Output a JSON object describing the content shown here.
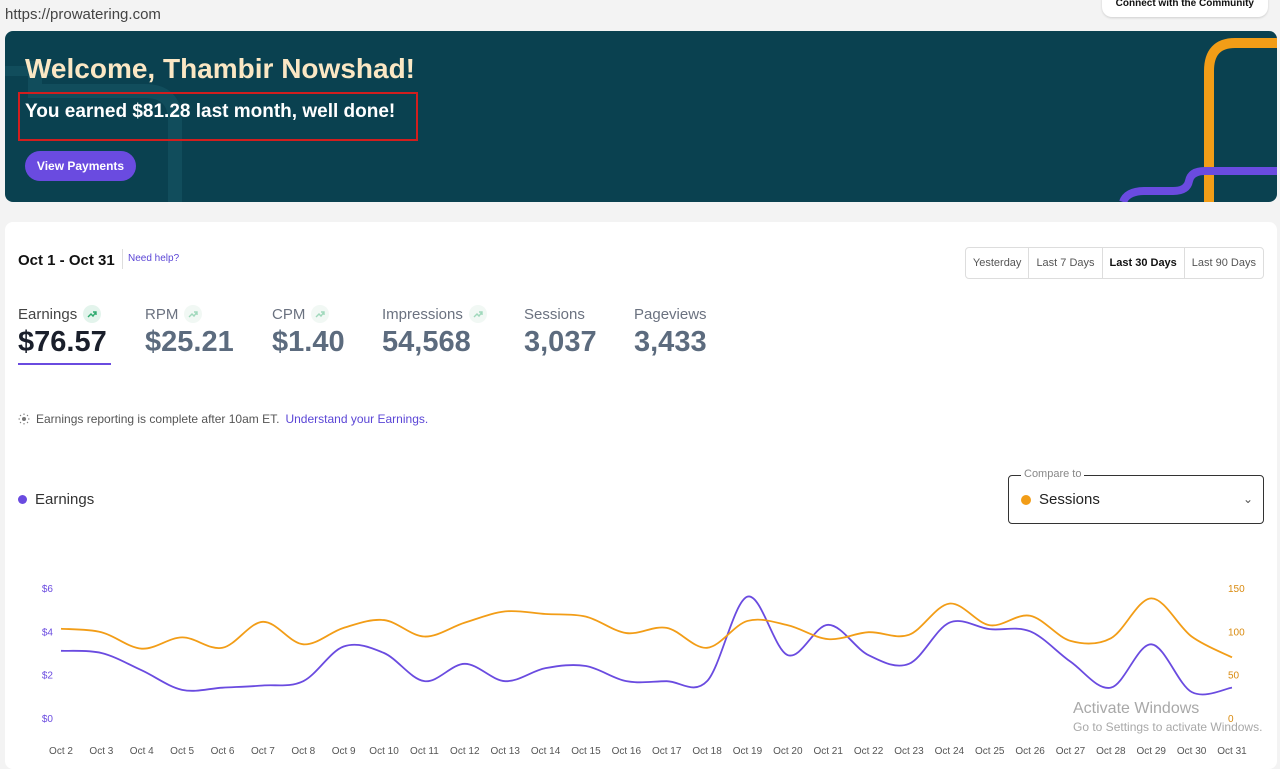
{
  "header": {
    "site_url": "https://prowatering.com",
    "community_button": "Connect with the Community"
  },
  "hero": {
    "title": "Welcome, Thambir Nowshad!",
    "subtitle": "You earned $81.28 last month, well done!",
    "button": "View Payments"
  },
  "dashboard": {
    "date_range": "Oct 1 - Oct 31",
    "help_link": "Need help?",
    "ranges": [
      "Yesterday",
      "Last 7 Days",
      "Last 30 Days",
      "Last 90 Days"
    ],
    "active_range": "Last 30 Days",
    "metrics": [
      {
        "label": "Earnings",
        "value": "$76.57",
        "active": true
      },
      {
        "label": "RPM",
        "value": "$25.21"
      },
      {
        "label": "CPM",
        "value": "$1.40"
      },
      {
        "label": "Impressions",
        "value": "54,568"
      },
      {
        "label": "Sessions",
        "value": "3,037"
      },
      {
        "label": "Pageviews",
        "value": "3,433"
      }
    ],
    "note_text": "Earnings reporting is complete after 10am ET.",
    "note_link": "Understand your Earnings.",
    "legend_label": "Earnings",
    "compare_label": "Compare to",
    "compare_value": "Sessions"
  },
  "colors": {
    "earnings": "#6a4be0",
    "sessions": "#f29d17",
    "hero_bg": "#0a4150",
    "accent": "#6a4be0"
  },
  "chart_data": {
    "type": "line",
    "categories": [
      "Oct 2",
      "Oct 3",
      "Oct 4",
      "Oct 5",
      "Oct 6",
      "Oct 7",
      "Oct 8",
      "Oct 9",
      "Oct 10",
      "Oct 11",
      "Oct 12",
      "Oct 13",
      "Oct 14",
      "Oct 15",
      "Oct 16",
      "Oct 17",
      "Oct 18",
      "Oct 19",
      "Oct 20",
      "Oct 21",
      "Oct 22",
      "Oct 23",
      "Oct 24",
      "Oct 25",
      "Oct 26",
      "Oct 27",
      "Oct 28",
      "Oct 29",
      "Oct 30",
      "Oct 31"
    ],
    "y_left_ticks": [
      "$0",
      "$2",
      "$4",
      "$6"
    ],
    "y_right_ticks": [
      "0",
      "50",
      "100",
      "150"
    ],
    "ylim_left": [
      0,
      6
    ],
    "ylim_right": [
      0,
      150
    ],
    "series": [
      {
        "name": "Earnings",
        "axis": "left",
        "values": [
          3.1,
          3.0,
          2.2,
          1.3,
          1.4,
          1.5,
          1.7,
          3.3,
          3.0,
          1.7,
          2.5,
          1.7,
          2.3,
          2.4,
          1.7,
          1.7,
          1.7,
          5.6,
          2.9,
          4.3,
          2.9,
          2.5,
          4.4,
          4.1,
          4.0,
          2.6,
          1.4,
          3.4,
          1.2,
          1.4
        ]
      },
      {
        "name": "Sessions",
        "axis": "right",
        "values": [
          103,
          99,
          80,
          93,
          81,
          111,
          85,
          104,
          113,
          94,
          110,
          123,
          120,
          117,
          98,
          104,
          81,
          112,
          107,
          91,
          99,
          96,
          132,
          107,
          118,
          89,
          92,
          138,
          94,
          70
        ]
      }
    ]
  },
  "watermark": {
    "title": "Activate Windows",
    "subtitle": "Go to Settings to activate Windows."
  }
}
